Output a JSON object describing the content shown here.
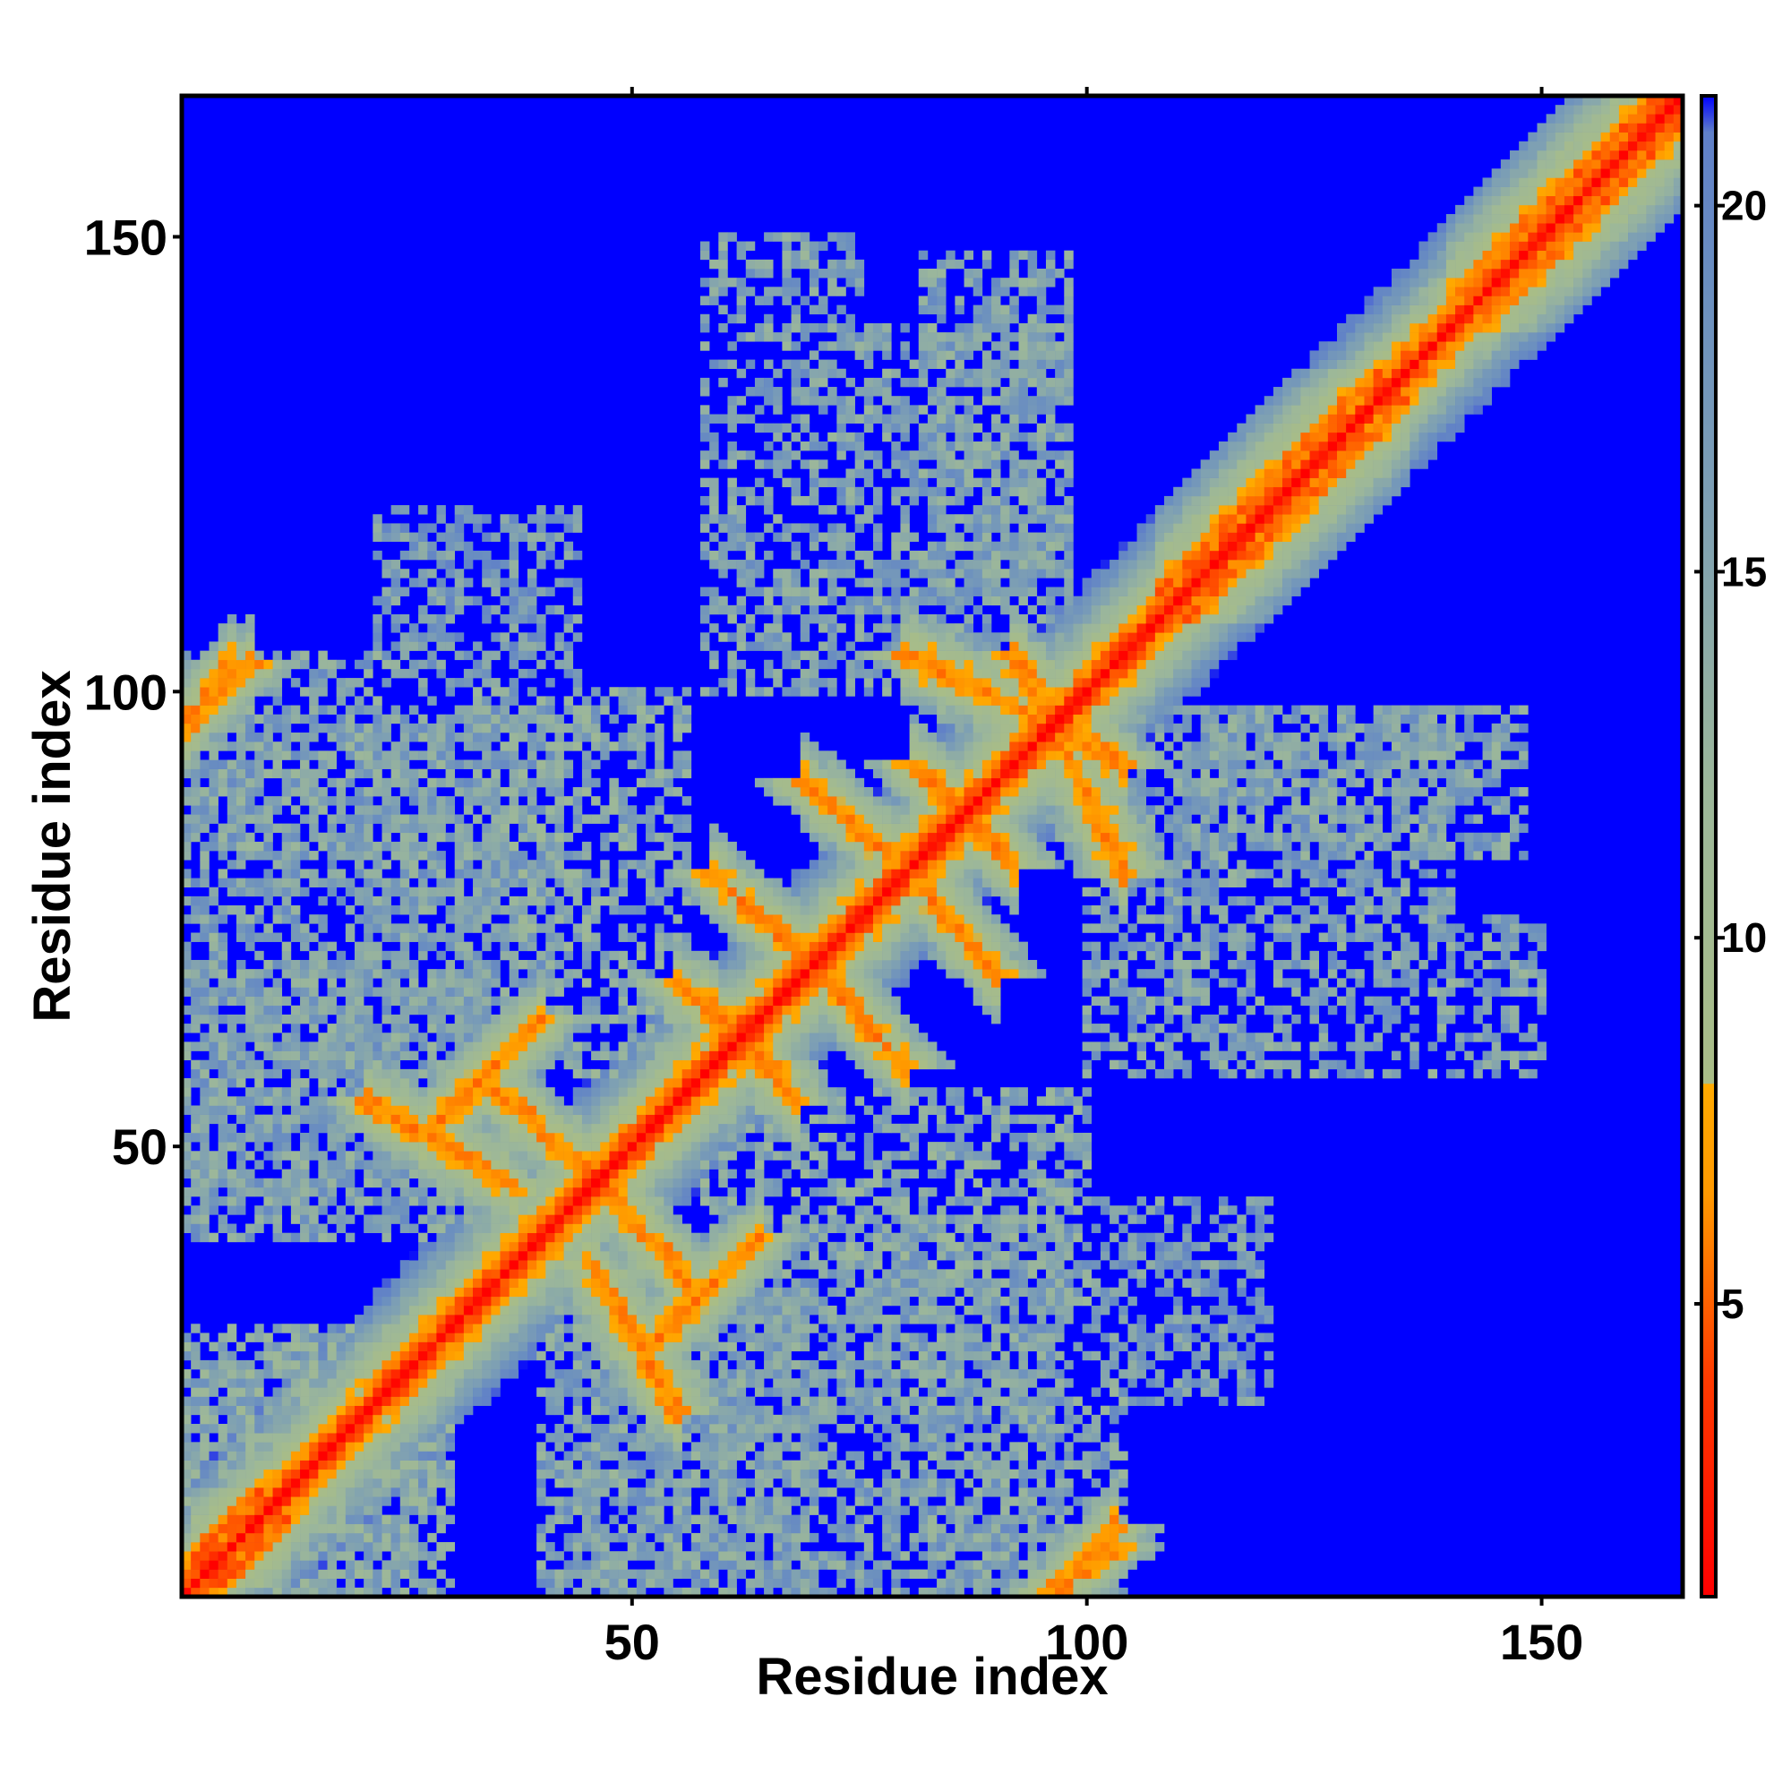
{
  "chart_data": {
    "type": "heatmap",
    "title": "",
    "xlabel": "Residue index",
    "ylabel": "Residue index",
    "n_residues": 165,
    "xlim": [
      1,
      165
    ],
    "ylim": [
      1,
      165
    ],
    "x_ticks": [
      50,
      100,
      150
    ],
    "y_ticks": [
      50,
      100,
      150
    ],
    "colorbar": {
      "range": [
        1,
        21.5
      ],
      "ticks": [
        5,
        10,
        15,
        20
      ],
      "stops": [
        {
          "value": 1,
          "color": "#ff0000"
        },
        {
          "value": 4,
          "color": "#ff3b00"
        },
        {
          "value": 6.5,
          "color": "#ff9900"
        },
        {
          "value": 8,
          "color": "#ffaa00"
        },
        {
          "value": 8.01,
          "color": "#a9bd86"
        },
        {
          "value": 12,
          "color": "#9cb79a"
        },
        {
          "value": 16,
          "color": "#7d9fb4"
        },
        {
          "value": 19,
          "color": "#6a8ec0"
        },
        {
          "value": 21,
          "color": "#6080c8"
        },
        {
          "value": 21.5,
          "color": "#0000ff"
        }
      ]
    },
    "structure": {
      "helix_segments": [
        [
          2,
          12
        ],
        [
          108,
          135
        ],
        [
          140,
          165
        ]
      ],
      "beta_pairs": [
        {
          "a": [
            21,
            37
          ],
          "b": [
            45,
            55
          ],
          "orientation": "anti",
          "distance": 5
        },
        {
          "a": [
            35,
            47
          ],
          "b": [
            46,
            56
          ],
          "orientation": "anti",
          "distance": 5
        },
        {
          "a": [
            28,
            40
          ],
          "b": [
            52,
            64
          ],
          "orientation": "parallel",
          "distance": 5
        },
        {
          "a": [
            55,
            66
          ],
          "b": [
            58,
            68
          ],
          "orientation": "anti",
          "distance": 5
        },
        {
          "a": [
            59,
            74
          ],
          "b": [
            66,
            80
          ],
          "orientation": "anti",
          "distance": 5
        },
        {
          "a": [
            69,
            80
          ],
          "b": [
            81,
            90
          ],
          "orientation": "anti",
          "distance": 5
        },
        {
          "a": [
            81,
            91
          ],
          "b": [
            82,
            92
          ],
          "orientation": "anti",
          "distance": 5
        },
        {
          "a": [
            80,
            104
          ],
          "b": [
            92,
            104
          ],
          "orientation": "anti",
          "distance": 5
        },
        {
          "a": [
            1,
            8
          ],
          "b": [
            97,
            103
          ],
          "orientation": "parallel",
          "distance": 5
        },
        {
          "a": [
            96,
            103
          ],
          "b": [
            1,
            6
          ],
          "orientation": "parallel",
          "distance": 5
        }
      ],
      "contact_clusters": [
        {
          "x": [
            1,
            28
          ],
          "y": [
            1,
            30
          ],
          "dist": 11
        },
        {
          "x": [
            36,
            56
          ],
          "y": [
            58,
            100
          ],
          "dist": 11
        },
        {
          "x": [
            58,
            75
          ],
          "y": [
            100,
            150
          ],
          "dist": 12
        },
        {
          "x": [
            82,
            98
          ],
          "y": [
            110,
            148
          ],
          "dist": 12
        },
        {
          "x": [
            100,
            140
          ],
          "y": [
            76,
            98
          ],
          "dist": 12
        },
        {
          "x": [
            60,
            100
          ],
          "y": [
            20,
            42
          ],
          "dist": 12
        },
        {
          "x": [
            1,
            40
          ],
          "y": [
            40,
            98
          ],
          "dist": 12
        },
        {
          "x": [
            44,
            70
          ],
          "y": [
            1,
            40
          ],
          "dist": 12
        },
        {
          "x": [
            82,
            104
          ],
          "y": [
            1,
            30
          ],
          "dist": 12
        },
        {
          "x": [
            100,
            120
          ],
          "y": [
            22,
            44
          ],
          "dist": 13
        }
      ]
    }
  }
}
